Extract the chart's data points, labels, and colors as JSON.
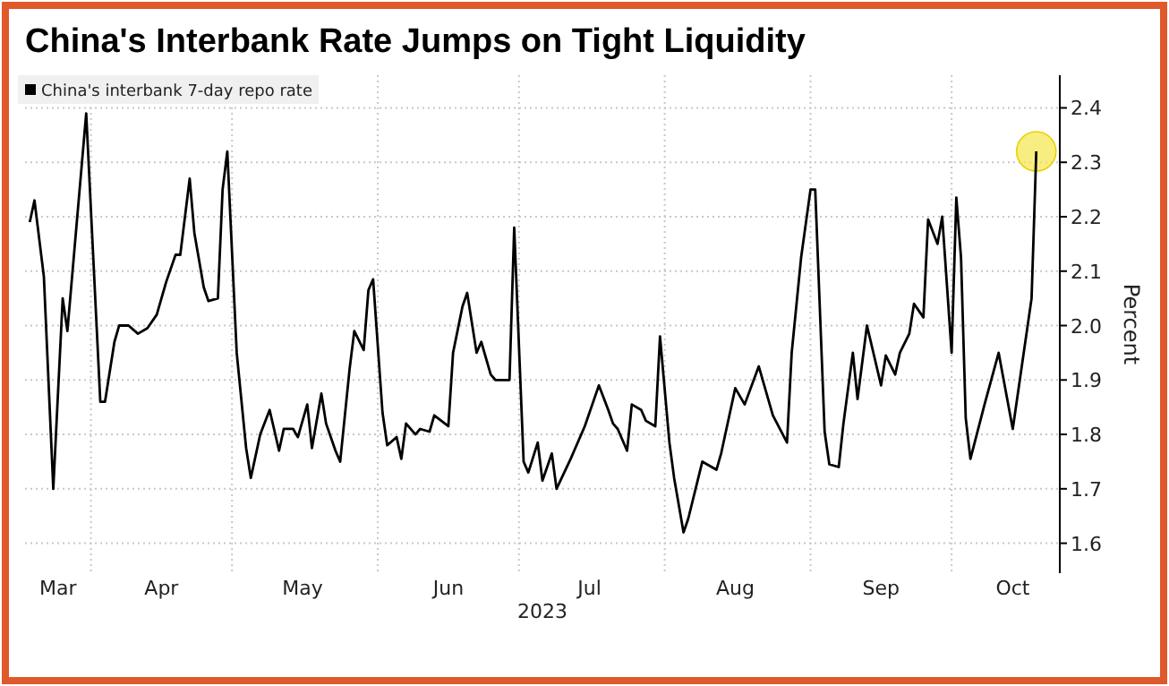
{
  "chart_data": {
    "type": "line",
    "title": "China's Interbank Rate Jumps on Tight Liquidity",
    "xlabel": "2023",
    "ylabel": "Percent",
    "xlim": [
      "2023-03-18",
      "2023-10-24"
    ],
    "ylim": [
      1.545,
      2.46
    ],
    "xticks": [
      {
        "value": "2023-03-25",
        "label": "Mar"
      },
      {
        "value": "2023-04-01",
        "label": null
      },
      {
        "value": "2023-04-16",
        "label": "Apr"
      },
      {
        "value": "2023-05-01",
        "label": null
      },
      {
        "value": "2023-05-16",
        "label": "May"
      },
      {
        "value": "2023-06-01",
        "label": null
      },
      {
        "value": "2023-06-16",
        "label": "Jun"
      },
      {
        "value": "2023-07-01",
        "label": null
      },
      {
        "value": "2023-07-16",
        "label": "Jul"
      },
      {
        "value": "2023-08-01",
        "label": null
      },
      {
        "value": "2023-08-16",
        "label": "Aug"
      },
      {
        "value": "2023-09-01",
        "label": null
      },
      {
        "value": "2023-09-16",
        "label": "Sep"
      },
      {
        "value": "2023-10-01",
        "label": null
      },
      {
        "value": "2023-10-14",
        "label": "Oct"
      }
    ],
    "yticks": [
      1.6,
      1.7,
      1.8,
      1.9,
      {
        "value": 2.0,
        "label": "2.0"
      },
      2.1,
      2.2,
      2.3,
      2.4
    ],
    "grid": true,
    "legend": "top left",
    "line_style": "solid",
    "series": [
      {
        "name": "China's interbank 7-day repo rate",
        "color": "#000000",
        "marker": "none",
        "x": [
          "2023-03-19",
          "2023-03-20",
          "2023-03-22",
          "2023-03-24",
          "2023-03-26",
          "2023-03-27",
          "2023-03-31",
          "2023-04-03",
          "2023-04-04",
          "2023-04-06",
          "2023-04-07",
          "2023-04-09",
          "2023-04-11",
          "2023-04-13",
          "2023-04-15",
          "2023-04-17",
          "2023-04-19",
          "2023-04-20",
          "2023-04-22",
          "2023-04-23",
          "2023-04-25",
          "2023-04-26",
          "2023-04-28",
          "2023-04-29",
          "2023-04-30",
          "2023-05-02",
          "2023-05-04",
          "2023-05-05",
          "2023-05-07",
          "2023-05-09",
          "2023-05-11",
          "2023-05-12",
          "2023-05-14",
          "2023-05-15",
          "2023-05-17",
          "2023-05-18",
          "2023-05-20",
          "2023-05-21",
          "2023-05-23",
          "2023-05-24",
          "2023-05-26",
          "2023-05-27",
          "2023-05-29",
          "2023-05-30",
          "2023-05-31",
          "2023-06-02",
          "2023-06-03",
          "2023-06-05",
          "2023-06-06",
          "2023-06-07",
          "2023-06-09",
          "2023-06-10",
          "2023-06-12",
          "2023-06-13",
          "2023-06-16",
          "2023-06-17",
          "2023-06-19",
          "2023-06-20",
          "2023-06-22",
          "2023-06-23",
          "2023-06-25",
          "2023-06-26",
          "2023-06-29",
          "2023-06-30",
          "2023-07-02",
          "2023-07-03",
          "2023-07-05",
          "2023-07-06",
          "2023-07-08",
          "2023-07-09",
          "2023-07-12",
          "2023-07-15",
          "2023-07-18",
          "2023-07-20",
          "2023-07-21",
          "2023-07-22",
          "2023-07-24",
          "2023-07-25",
          "2023-07-27",
          "2023-07-28",
          "2023-07-30",
          "2023-07-31",
          "2023-08-02",
          "2023-08-03",
          "2023-08-05",
          "2023-08-06",
          "2023-08-08",
          "2023-08-09",
          "2023-08-12",
          "2023-08-13",
          "2023-08-16",
          "2023-08-18",
          "2023-08-21",
          "2023-08-24",
          "2023-08-27",
          "2023-08-28",
          "2023-08-30",
          "2023-09-01",
          "2023-09-02",
          "2023-09-04",
          "2023-09-05",
          "2023-09-07",
          "2023-09-08",
          "2023-09-10",
          "2023-09-11",
          "2023-09-13",
          "2023-09-16",
          "2023-09-17",
          "2023-09-19",
          "2023-09-20",
          "2023-09-22",
          "2023-09-23",
          "2023-09-25",
          "2023-09-26",
          "2023-09-28",
          "2023-09-29",
          "2023-10-01",
          "2023-10-02",
          "2023-10-03",
          "2023-10-04",
          "2023-10-05",
          "2023-10-08",
          "2023-10-11",
          "2023-10-14",
          "2023-10-16",
          "2023-10-18",
          "2023-10-19"
        ],
        "values": [
          2.19,
          2.23,
          2.09,
          1.7,
          2.05,
          1.99,
          2.39,
          1.86,
          1.86,
          1.97,
          2.0,
          2.0,
          1.985,
          1.995,
          2.02,
          2.08,
          2.13,
          2.13,
          2.27,
          2.17,
          2.07,
          2.045,
          2.05,
          2.25,
          2.32,
          1.95,
          1.775,
          1.72,
          1.8,
          1.845,
          1.77,
          1.81,
          1.81,
          1.795,
          1.855,
          1.775,
          1.875,
          1.82,
          1.77,
          1.75,
          1.92,
          1.99,
          1.955,
          2.065,
          2.085,
          1.84,
          1.78,
          1.795,
          1.755,
          1.82,
          1.8,
          1.81,
          1.805,
          1.835,
          1.815,
          1.95,
          2.035,
          2.06,
          1.95,
          1.97,
          1.91,
          1.9,
          1.9,
          2.18,
          1.75,
          1.73,
          1.785,
          1.715,
          1.765,
          1.7,
          1.755,
          1.815,
          1.89,
          1.845,
          1.82,
          1.81,
          1.77,
          1.855,
          1.845,
          1.825,
          1.815,
          1.98,
          1.785,
          1.72,
          1.62,
          1.645,
          1.715,
          1.75,
          1.735,
          1.765,
          1.885,
          1.855,
          1.925,
          1.835,
          1.785,
          1.95,
          2.125,
          2.25,
          2.25,
          1.805,
          1.745,
          1.74,
          1.82,
          1.95,
          1.865,
          2.0,
          1.89,
          1.945,
          1.91,
          1.95,
          1.985,
          2.04,
          2.015,
          2.195,
          2.15,
          2.2,
          1.95,
          2.235,
          2.125,
          1.83,
          1.755,
          1.855,
          1.95,
          1.81,
          1.93,
          2.05,
          2.32
        ]
      },
      {
        "type": "scatter",
        "color": "#f5e64a",
        "marker": "circle",
        "x": [
          "2023-10-19"
        ],
        "values": [
          2.32
        ]
      }
    ]
  }
}
